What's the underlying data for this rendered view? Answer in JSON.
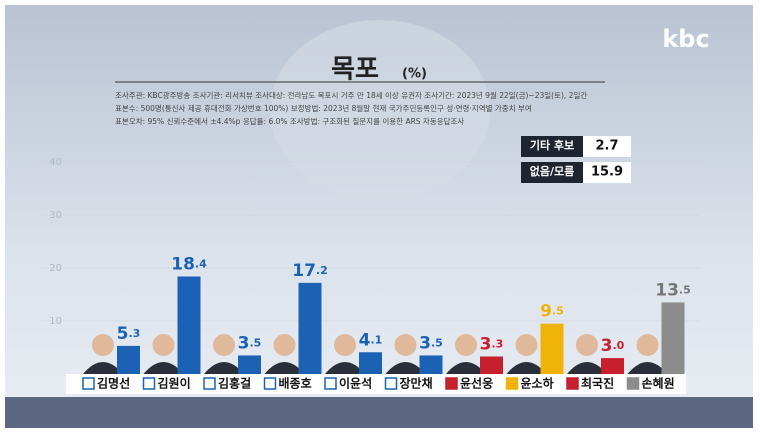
{
  "chart_data": {
    "type": "bar",
    "title": "목포",
    "unit": "(%)",
    "logo": "kbc",
    "info": [
      "조사주관: KBC광주방송   조사기관: 리서치뷰   조사대상: 전라남도 목포시 거주 만 18세 이상 유권자   조사기간: 2023년 9월 22일(금)~23일(토), 2일간",
      "표본수: 500명(통신사 제공 휴대전화 가상번호 100%)   보정방법: 2023년 8월말 현재 국가주민등록인구 성·연령·지역별 가중치 부여",
      "표본오차: 95% 신뢰수준에서 ±4.4%p   응답률: 6.0%   조사방법: 구조화된 질문지를 이용한 ARS 자동응답조사"
    ],
    "categories": [
      "김명선",
      "김원이",
      "김홍걸",
      "배종호",
      "이윤석",
      "장만채",
      "윤선웅",
      "윤소하",
      "최국진",
      "손혜원"
    ],
    "values": [
      5.3,
      18.4,
      3.5,
      17.2,
      4.1,
      3.5,
      3.3,
      9.5,
      3.0,
      13.5
    ],
    "value_labels": [
      "5.3",
      "18.4",
      "3.5",
      "17.2",
      "4.1",
      "3.5",
      "3.3",
      "9.5",
      "3.0",
      "13.5"
    ],
    "colors": [
      "#1b62b5",
      "#1b62b5",
      "#1b62b5",
      "#1b62b5",
      "#1b62b5",
      "#1b62b5",
      "#c61f2e",
      "#efb30a",
      "#c61f2e",
      "#8c8c8c"
    ],
    "others": [
      {
        "label": "기타 후보",
        "value": 2.7
      },
      {
        "label": "없음/모름",
        "value": 15.9
      }
    ],
    "ylim": [
      0,
      40
    ],
    "yticks": [
      10,
      20,
      30,
      40
    ],
    "grid": true
  }
}
